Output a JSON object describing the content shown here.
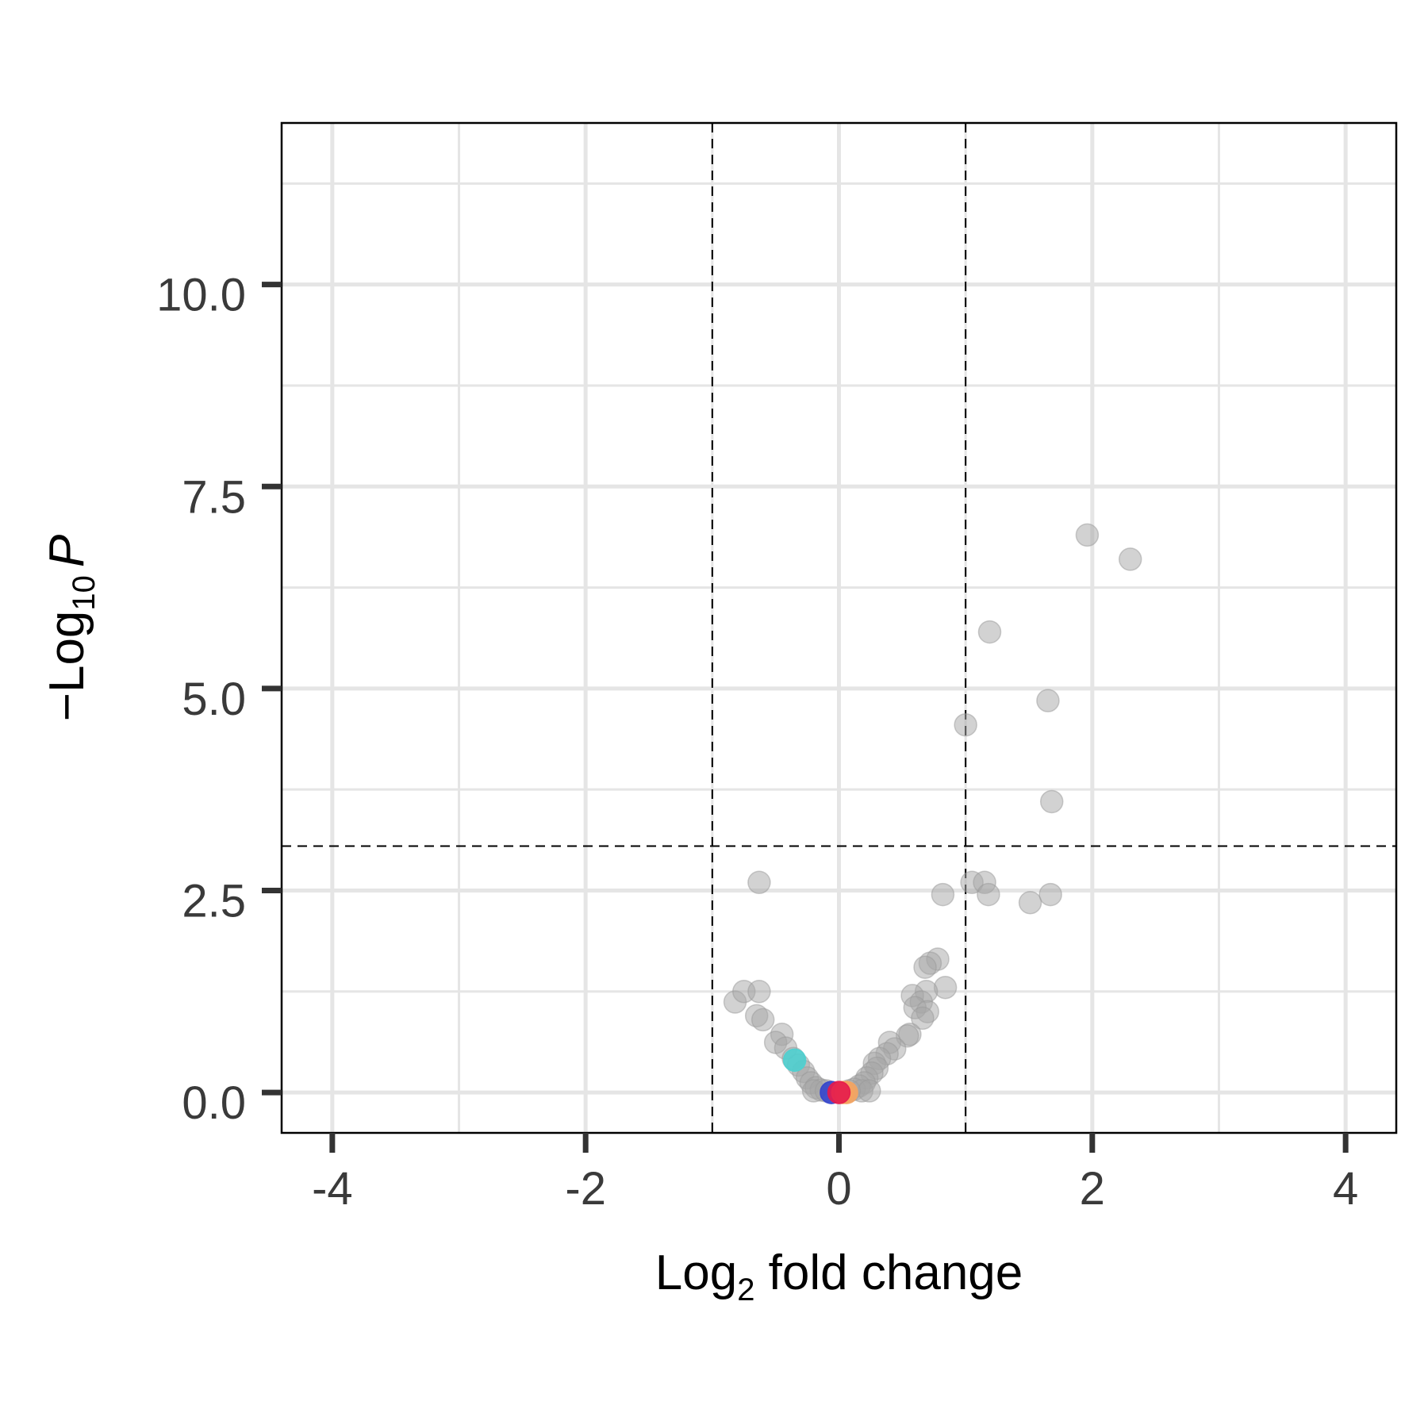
{
  "chart_data": {
    "type": "scatter",
    "title": "",
    "xlabel_main": "Log",
    "xlabel_sub": "2",
    "xlabel_rest": " fold change",
    "ylabel_prefix": "−Log",
    "ylabel_sub": "10",
    "ylabel_var": "P",
    "xlim": [
      -4.4,
      4.4
    ],
    "ylim": [
      -0.5,
      12.0
    ],
    "x_ticks": [
      -4,
      -2,
      0,
      2,
      4
    ],
    "x_tick_labels": [
      "-4",
      "-2",
      "0",
      "2",
      "4"
    ],
    "y_ticks": [
      0,
      2.5,
      5,
      7.5,
      10
    ],
    "y_tick_labels": [
      "0.0",
      "2.5",
      "5.0",
      "7.5",
      "10.0"
    ],
    "x_minor_grid": [
      -3,
      -1,
      1,
      3
    ],
    "y_minor_grid": [
      1.25,
      3.75,
      6.25,
      8.75,
      11.25
    ],
    "grid": true,
    "legend": "none",
    "thresholds": {
      "fold_change": [
        -1,
        1
      ],
      "neg_log10_p": 3.05
    },
    "colors": {
      "nonsignificant": "#a6a6a6",
      "highlight_cyan": "#4ecfcf",
      "highlight_blue": "#3344cc",
      "highlight_orange": "#f4a460",
      "highlight_red": "#e6194b",
      "grid": "#e5e5e5",
      "threshold_line": "#000000"
    },
    "points": [
      {
        "x": 1.96,
        "y": 6.9,
        "c": "nonsignificant"
      },
      {
        "x": 2.3,
        "y": 6.6,
        "c": "nonsignificant"
      },
      {
        "x": 1.19,
        "y": 5.7,
        "c": "nonsignificant"
      },
      {
        "x": 1.65,
        "y": 4.85,
        "c": "nonsignificant"
      },
      {
        "x": 1.0,
        "y": 4.55,
        "c": "nonsignificant"
      },
      {
        "x": 1.68,
        "y": 3.6,
        "c": "nonsignificant"
      },
      {
        "x": -0.63,
        "y": 2.6,
        "c": "nonsignificant"
      },
      {
        "x": 1.05,
        "y": 2.6,
        "c": "nonsignificant"
      },
      {
        "x": 1.15,
        "y": 2.6,
        "c": "nonsignificant"
      },
      {
        "x": 0.82,
        "y": 2.45,
        "c": "nonsignificant"
      },
      {
        "x": 1.18,
        "y": 2.45,
        "c": "nonsignificant"
      },
      {
        "x": 1.67,
        "y": 2.45,
        "c": "nonsignificant"
      },
      {
        "x": 1.51,
        "y": 2.35,
        "c": "nonsignificant"
      },
      {
        "x": 0.78,
        "y": 1.65,
        "c": "nonsignificant"
      },
      {
        "x": 0.72,
        "y": 1.6,
        "c": "nonsignificant"
      },
      {
        "x": 0.68,
        "y": 1.55,
        "c": "nonsignificant"
      },
      {
        "x": 0.84,
        "y": 1.3,
        "c": "nonsignificant"
      },
      {
        "x": 0.69,
        "y": 1.25,
        "c": "nonsignificant"
      },
      {
        "x": 0.58,
        "y": 1.2,
        "c": "nonsignificant"
      },
      {
        "x": 0.65,
        "y": 1.12,
        "c": "nonsignificant"
      },
      {
        "x": 0.6,
        "y": 1.05,
        "c": "nonsignificant"
      },
      {
        "x": 0.7,
        "y": 1.0,
        "c": "nonsignificant"
      },
      {
        "x": 0.66,
        "y": 0.92,
        "c": "nonsignificant"
      },
      {
        "x": 0.56,
        "y": 0.72,
        "c": "nonsignificant"
      },
      {
        "x": 0.54,
        "y": 0.7,
        "c": "nonsignificant"
      },
      {
        "x": 0.4,
        "y": 0.62,
        "c": "nonsignificant"
      },
      {
        "x": 0.44,
        "y": 0.54,
        "c": "nonsignificant"
      },
      {
        "x": 0.38,
        "y": 0.48,
        "c": "nonsignificant"
      },
      {
        "x": 0.32,
        "y": 0.42,
        "c": "nonsignificant"
      },
      {
        "x": 0.28,
        "y": 0.36,
        "c": "nonsignificant"
      },
      {
        "x": 0.3,
        "y": 0.3,
        "c": "nonsignificant"
      },
      {
        "x": 0.26,
        "y": 0.24,
        "c": "nonsignificant"
      },
      {
        "x": 0.22,
        "y": 0.18,
        "c": "nonsignificant"
      },
      {
        "x": 0.2,
        "y": 0.12,
        "c": "nonsignificant"
      },
      {
        "x": 0.16,
        "y": 0.08,
        "c": "nonsignificant"
      },
      {
        "x": 0.12,
        "y": 0.04,
        "c": "nonsignificant"
      },
      {
        "x": 0.18,
        "y": 0.02,
        "c": "nonsignificant"
      },
      {
        "x": 0.24,
        "y": 0.02,
        "c": "nonsignificant"
      },
      {
        "x": -0.82,
        "y": 1.12,
        "c": "nonsignificant"
      },
      {
        "x": -0.75,
        "y": 1.25,
        "c": "nonsignificant"
      },
      {
        "x": -0.63,
        "y": 1.25,
        "c": "nonsignificant"
      },
      {
        "x": -0.65,
        "y": 0.95,
        "c": "nonsignificant"
      },
      {
        "x": -0.6,
        "y": 0.9,
        "c": "nonsignificant"
      },
      {
        "x": -0.45,
        "y": 0.72,
        "c": "nonsignificant"
      },
      {
        "x": -0.5,
        "y": 0.62,
        "c": "nonsignificant"
      },
      {
        "x": -0.42,
        "y": 0.55,
        "c": "nonsignificant"
      },
      {
        "x": -0.36,
        "y": 0.42,
        "c": "nonsignificant"
      },
      {
        "x": -0.32,
        "y": 0.34,
        "c": "nonsignificant"
      },
      {
        "x": -0.28,
        "y": 0.26,
        "c": "nonsignificant"
      },
      {
        "x": -0.25,
        "y": 0.18,
        "c": "nonsignificant"
      },
      {
        "x": -0.22,
        "y": 0.12,
        "c": "nonsignificant"
      },
      {
        "x": -0.18,
        "y": 0.06,
        "c": "nonsignificant"
      },
      {
        "x": -0.14,
        "y": 0.03,
        "c": "nonsignificant"
      },
      {
        "x": -0.2,
        "y": 0.02,
        "c": "nonsignificant"
      },
      {
        "x": -0.1,
        "y": 0.02,
        "c": "nonsignificant"
      },
      {
        "x": 0.08,
        "y": 0.02,
        "c": "nonsignificant"
      },
      {
        "x": -0.35,
        "y": 0.4,
        "c": "highlight_cyan"
      },
      {
        "x": -0.06,
        "y": 0.0,
        "c": "highlight_blue"
      },
      {
        "x": 0.06,
        "y": 0.0,
        "c": "highlight_orange"
      },
      {
        "x": 0.03,
        "y": 0.0,
        "c": "highlight_orange"
      },
      {
        "x": 0.0,
        "y": 0.0,
        "c": "highlight_red"
      }
    ]
  }
}
